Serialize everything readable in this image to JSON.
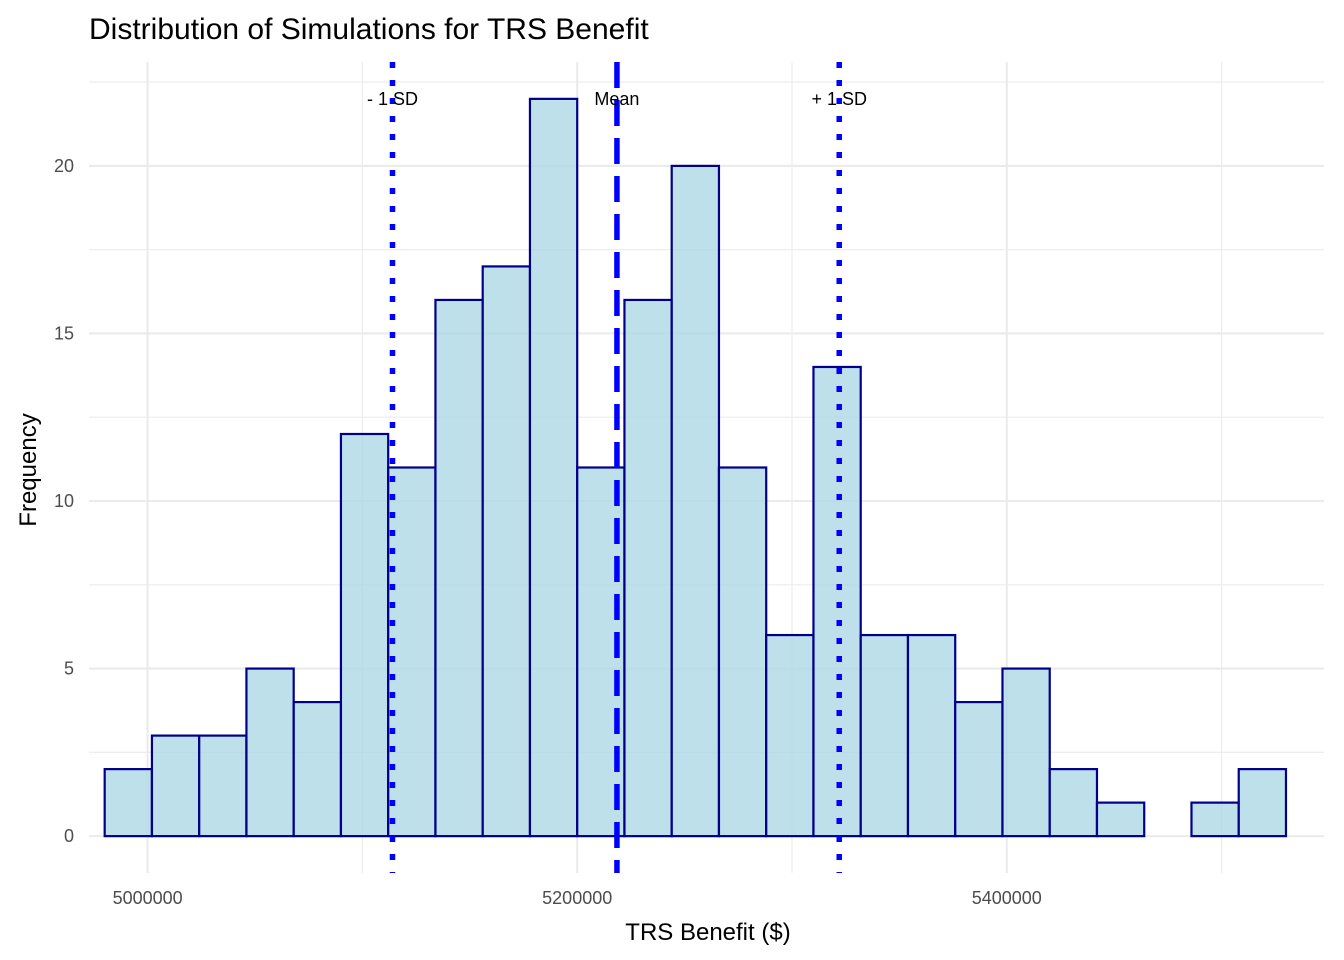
{
  "chart_data": {
    "type": "bar",
    "title": "Distribution of Simulations for TRS Benefit",
    "xlabel": "TRS Benefit ($)",
    "ylabel": "Frequency",
    "xlim": [
      4972700,
      5547700
    ],
    "ylim": [
      -1.1,
      23.1
    ],
    "x_ticks": [
      5000000,
      5200000,
      5400000
    ],
    "x_tick_labels": [
      "5000000",
      "5200000",
      "5400000"
    ],
    "y_ticks": [
      0,
      5,
      10,
      15,
      20
    ],
    "y_tick_labels": [
      "0",
      "5",
      "10",
      "15",
      "20"
    ],
    "bin_width": 22000,
    "bins": [
      {
        "x0": 4980000,
        "x1": 5002000,
        "count": 2
      },
      {
        "x0": 5002000,
        "x1": 5024000,
        "count": 3
      },
      {
        "x0": 5024000,
        "x1": 5046000,
        "count": 3
      },
      {
        "x0": 5046000,
        "x1": 5068000,
        "count": 5
      },
      {
        "x0": 5068000,
        "x1": 5090000,
        "count": 4
      },
      {
        "x0": 5090000,
        "x1": 5112000,
        "count": 12
      },
      {
        "x0": 5112000,
        "x1": 5134000,
        "count": 11
      },
      {
        "x0": 5134000,
        "x1": 5156000,
        "count": 16
      },
      {
        "x0": 5156000,
        "x1": 5178000,
        "count": 17
      },
      {
        "x0": 5178000,
        "x1": 5200000,
        "count": 22
      },
      {
        "x0": 5200000,
        "x1": 5222000,
        "count": 11
      },
      {
        "x0": 5222000,
        "x1": 5244000,
        "count": 16
      },
      {
        "x0": 5244000,
        "x1": 5266000,
        "count": 20
      },
      {
        "x0": 5266000,
        "x1": 5288000,
        "count": 11
      },
      {
        "x0": 5288000,
        "x1": 5310000,
        "count": 6
      },
      {
        "x0": 5310000,
        "x1": 5332000,
        "count": 14
      },
      {
        "x0": 5332000,
        "x1": 5354000,
        "count": 6
      },
      {
        "x0": 5354000,
        "x1": 5376000,
        "count": 6
      },
      {
        "x0": 5376000,
        "x1": 5398000,
        "count": 4
      },
      {
        "x0": 5398000,
        "x1": 5420000,
        "count": 5
      },
      {
        "x0": 5420000,
        "x1": 5442000,
        "count": 2
      },
      {
        "x0": 5442000,
        "x1": 5464000,
        "count": 1
      },
      {
        "x0": 5464000,
        "x1": 5486000,
        "count": 0
      },
      {
        "x0": 5486000,
        "x1": 5508000,
        "count": 1
      },
      {
        "x0": 5508000,
        "x1": 5530000,
        "count": 2
      }
    ],
    "reference_lines": [
      {
        "label": "- 1 SD",
        "x": 5114000,
        "style": "dotted"
      },
      {
        "label": "Mean",
        "x": 5218500,
        "style": "dashed"
      },
      {
        "label": "+ 1 SD",
        "x": 5322000,
        "style": "dotted"
      }
    ],
    "colors": {
      "bar_fill": "#add8e6",
      "bar_outline": "#00008b",
      "reference_line": "#0000ff",
      "grid": "#ebebeb"
    },
    "grid": true,
    "legend": "none"
  }
}
